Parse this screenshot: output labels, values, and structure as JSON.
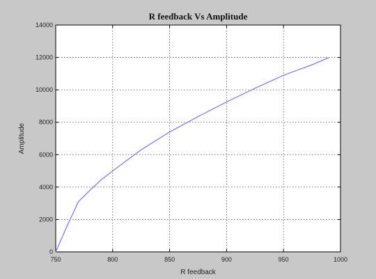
{
  "chart_data": {
    "type": "line",
    "title": "R feedback Vs Amplitude",
    "xlabel": "R feedback",
    "ylabel": "Amplitude",
    "xlim": [
      750,
      1000
    ],
    "ylim": [
      0,
      14000
    ],
    "x_ticks": [
      750,
      800,
      850,
      900,
      950,
      1000
    ],
    "y_ticks": [
      0,
      2000,
      4000,
      6000,
      8000,
      10000,
      12000,
      14000
    ],
    "x_tick_labels": [
      "750",
      "800",
      "850",
      "900",
      "950",
      "1000"
    ],
    "y_tick_labels": [
      "0",
      "2000",
      "4000",
      "6000",
      "8000",
      "10000",
      "12000",
      "14000"
    ],
    "grid": true,
    "series": [
      {
        "color": "#7f7fe8",
        "x": [
          750,
          760,
          770,
          780,
          790,
          800,
          825,
          850,
          875,
          900,
          925,
          950,
          975,
          990
        ],
        "y": [
          0,
          1600,
          3100,
          3800,
          4450,
          5000,
          6300,
          7400,
          8350,
          9250,
          10100,
          10900,
          11550,
          12000
        ]
      }
    ]
  }
}
